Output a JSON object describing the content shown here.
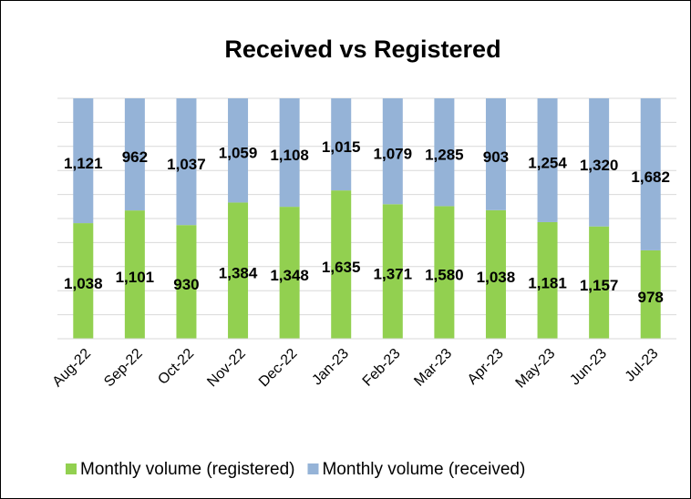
{
  "chart_data": {
    "type": "bar",
    "stacking": "percent",
    "title": "Received vs Registered",
    "categories": [
      "Aug-22",
      "Sep-22",
      "Oct-22",
      "Nov-22",
      "Dec-22",
      "Jan-23",
      "Feb-23",
      "Mar-23",
      "Apr-23",
      "May-23",
      "Jun-23",
      "Jul-23"
    ],
    "series": [
      {
        "name": "Monthly volume (registered)",
        "color": "#92d050",
        "values": [
          1038,
          1101,
          930,
          1384,
          1348,
          1635,
          1371,
          1580,
          1038,
          1181,
          1157,
          978
        ],
        "value_labels": [
          "1,038",
          "1,101",
          "930",
          "1,384",
          "1,348",
          "1,635",
          "1,371",
          "1,580",
          "1,038",
          "1,181",
          "1,157",
          "978"
        ]
      },
      {
        "name": "Monthly volume (received)",
        "color": "#95b3d7",
        "values": [
          1121,
          962,
          1037,
          1059,
          1108,
          1015,
          1079,
          1285,
          903,
          1254,
          1320,
          1682
        ],
        "value_labels": [
          "1,121",
          "962",
          "1,037",
          "1,059",
          "1,108",
          "1,015",
          "1,079",
          "1,285",
          "903",
          "1,254",
          "1,320",
          "1,682"
        ]
      }
    ],
    "ylim": [
      0,
      100
    ],
    "yticks": [
      0,
      10,
      20,
      30,
      40,
      50,
      60,
      70,
      80,
      90,
      100
    ],
    "tick_labels": false,
    "grid": true,
    "legend": "bottom"
  }
}
